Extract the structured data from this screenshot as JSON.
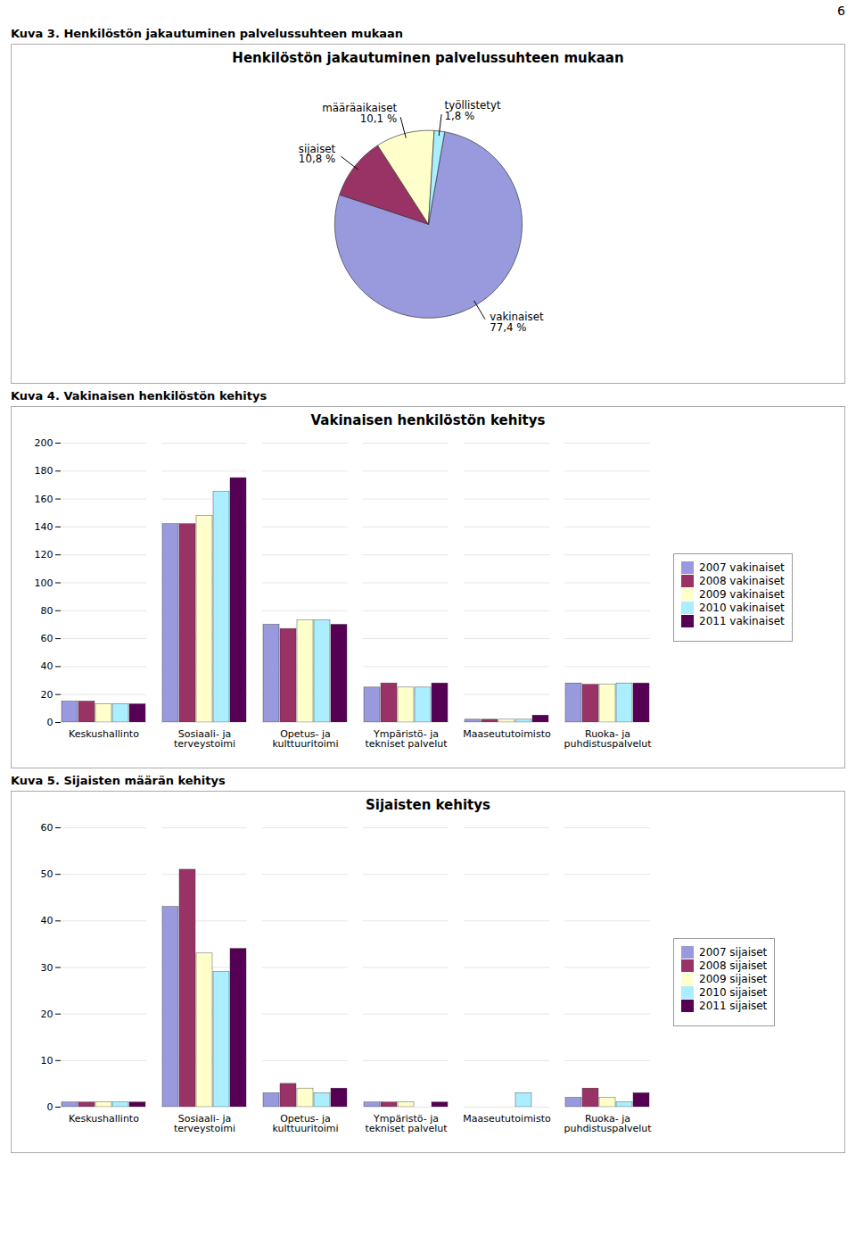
{
  "page_number": "6",
  "chart_data": [
    {
      "type": "pie",
      "caption": "Kuva 3. Henkilöstön jakautuminen palvelussuhteen mukaan",
      "title": "Henkilöstön jakautuminen palvelussuhteen mukaan",
      "categories": [
        "vakinaiset",
        "sijaiset",
        "määräaikaiset",
        "työllistetyt"
      ],
      "values": [
        77.4,
        10.8,
        10.1,
        1.8
      ],
      "value_labels": [
        "77,4 %",
        "10,8 %",
        "10,1 %",
        "1,8 %"
      ],
      "colors": [
        "#9999dd",
        "#993366",
        "#ffffcc",
        "#aaeeff"
      ],
      "data_labels": true
    },
    {
      "type": "bar",
      "caption": "Kuva 4. Vakinaisen henkilöstön kehitys",
      "title": "Vakinaisen henkilöstön kehitys",
      "categories": [
        "Keskushallinto",
        "Sosiaali- ja\nterveystoimi",
        "Opetus- ja\nkulttuuritoimi",
        "Ympäristö- ja\ntekniset palvelut",
        "Maaseututoimisto",
        "Ruoka- ja\npuhdistuspalvelut"
      ],
      "series": [
        {
          "name": "2007 vakinaiset",
          "color": "#9999dd",
          "values": [
            15,
            142,
            70,
            25,
            2,
            28
          ]
        },
        {
          "name": "2008 vakinaiset",
          "color": "#993366",
          "values": [
            15,
            142,
            67,
            28,
            2,
            27
          ]
        },
        {
          "name": "2009 vakinaiset",
          "color": "#ffffcc",
          "values": [
            13,
            148,
            73,
            25,
            2,
            27
          ]
        },
        {
          "name": "2010 vakinaiset",
          "color": "#aaeeff",
          "values": [
            13,
            165,
            73,
            25,
            2,
            28
          ]
        },
        {
          "name": "2011 vakinaiset",
          "color": "#550055",
          "values": [
            13,
            175,
            70,
            28,
            5,
            28
          ]
        }
      ],
      "ylim": [
        0,
        200
      ],
      "yticks": [
        0,
        20,
        40,
        60,
        80,
        100,
        120,
        140,
        160,
        180,
        200
      ],
      "grid": true,
      "legend": "right"
    },
    {
      "type": "bar",
      "caption": "Kuva 5.  Sijaisten määrän kehitys",
      "title": "Sijaisten kehitys",
      "categories": [
        "Keskushallinto",
        "Sosiaali- ja\nterveystoimi",
        "Opetus- ja\nkulttuuritoimi",
        "Ympäristö- ja\ntekniset palvelut",
        "Maaseututoimisto",
        "Ruoka- ja\npuhdistuspalvelut"
      ],
      "series": [
        {
          "name": "2007 sijaiset",
          "color": "#9999dd",
          "values": [
            1,
            43,
            3,
            1,
            0,
            2
          ]
        },
        {
          "name": "2008 sijaiset",
          "color": "#993366",
          "values": [
            1,
            51,
            5,
            1,
            0,
            4
          ]
        },
        {
          "name": "2009 sijaiset",
          "color": "#ffffcc",
          "values": [
            1,
            33,
            4,
            1,
            0,
            2
          ]
        },
        {
          "name": "2010 sijaiset",
          "color": "#aaeeff",
          "values": [
            1,
            29,
            3,
            0,
            3,
            1
          ]
        },
        {
          "name": "2011 sijaiset",
          "color": "#550055",
          "values": [
            1,
            34,
            4,
            1,
            0,
            3
          ]
        }
      ],
      "ylim": [
        0,
        60
      ],
      "yticks": [
        0,
        10,
        20,
        30,
        40,
        50,
        60
      ],
      "grid": true,
      "legend": "right"
    }
  ]
}
